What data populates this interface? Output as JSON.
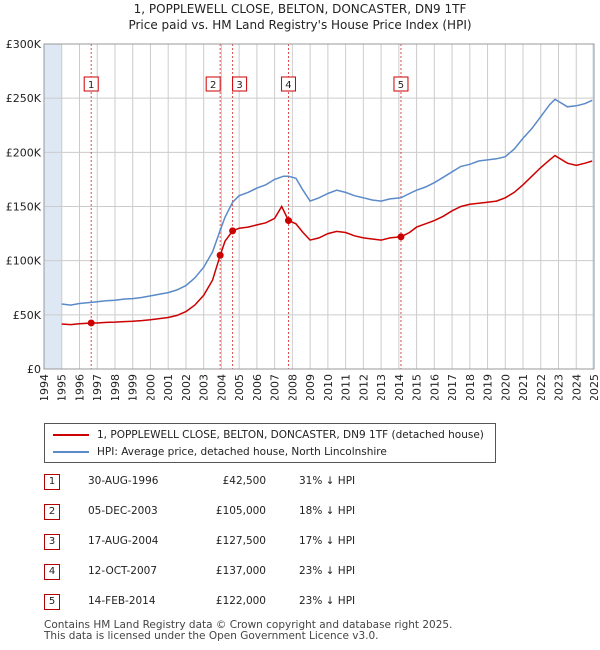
{
  "header": {
    "title_line1": "1, POPPLEWELL CLOSE, BELTON, DONCASTER, DN9 1TF",
    "title_line2": "Price paid vs. HM Land Registry's House Price Index (HPI)"
  },
  "legend": {
    "red_label": "1, POPPLEWELL CLOSE, BELTON, DONCASTER, DN9 1TF (detached house)",
    "blue_label": "HPI: Average price, detached house, North Lincolnshire"
  },
  "colors": {
    "red": "#cc0000",
    "blue": "#5b8ac9",
    "shade": "#dde8f4",
    "grid": "#cccccc"
  },
  "sales": [
    {
      "num": "1",
      "date": "30-AUG-1996",
      "price": "£42,500",
      "hpi": "31% ↓ HPI"
    },
    {
      "num": "2",
      "date": "05-DEC-2003",
      "price": "£105,000",
      "hpi": "18% ↓ HPI"
    },
    {
      "num": "3",
      "date": "17-AUG-2004",
      "price": "£127,500",
      "hpi": "17% ↓ HPI"
    },
    {
      "num": "4",
      "date": "12-OCT-2007",
      "price": "£137,000",
      "hpi": "23% ↓ HPI"
    },
    {
      "num": "5",
      "date": "14-FEB-2014",
      "price": "£122,000",
      "hpi": "23% ↓ HPI"
    }
  ],
  "footer": {
    "line1": "Contains HM Land Registry data © Crown copyright and database right 2025.",
    "line2": "This data is licensed under the Open Government Licence v3.0."
  },
  "chart_data": {
    "type": "line",
    "title": "Price paid vs. HM Land Registry's House Price Index (HPI)",
    "xlim": [
      1994,
      2025
    ],
    "ylim": [
      0,
      300000
    ],
    "x_ticks": [
      "1994",
      "1995",
      "1996",
      "1997",
      "1998",
      "1999",
      "2000",
      "2001",
      "2002",
      "2003",
      "2004",
      "2005",
      "2006",
      "2007",
      "2008",
      "2009",
      "2010",
      "2011",
      "2012",
      "2013",
      "2014",
      "2015",
      "2016",
      "2017",
      "2018",
      "2019",
      "2020",
      "2021",
      "2022",
      "2023",
      "2024",
      "2025"
    ],
    "y_ticks": [
      {
        "value": 0,
        "label": "£0"
      },
      {
        "value": 50000,
        "label": "£50K"
      },
      {
        "value": 100000,
        "label": "£100K"
      },
      {
        "value": 150000,
        "label": "£150K"
      },
      {
        "value": 200000,
        "label": "£200K"
      },
      {
        "value": 250000,
        "label": "£250K"
      },
      {
        "value": 300000,
        "label": "£300K"
      }
    ],
    "shaded_ranges": [
      [
        1994,
        1995
      ],
      [
        2024.9,
        2025
      ]
    ],
    "sale_markers": [
      {
        "label": "1",
        "x": 1996.66,
        "y": 42500
      },
      {
        "label": "2",
        "x": 2003.93,
        "y": 105000
      },
      {
        "label": "3",
        "x": 2004.63,
        "y": 127500
      },
      {
        "label": "4",
        "x": 2007.78,
        "y": 137000
      },
      {
        "label": "5",
        "x": 2014.12,
        "y": 122000
      }
    ],
    "series": [
      {
        "name": "HPI: Average price, detached house, North Lincolnshire",
        "color": "#5b8ac9",
        "points": [
          [
            1995.0,
            60000
          ],
          [
            1995.5,
            59000
          ],
          [
            1996.0,
            60500
          ],
          [
            1996.66,
            61500
          ],
          [
            1997.0,
            62000
          ],
          [
            1997.5,
            63000
          ],
          [
            1998.0,
            63500
          ],
          [
            1998.5,
            64500
          ],
          [
            1999.0,
            65000
          ],
          [
            1999.5,
            66000
          ],
          [
            2000.0,
            67500
          ],
          [
            2000.5,
            69000
          ],
          [
            2001.0,
            70500
          ],
          [
            2001.5,
            73000
          ],
          [
            2002.0,
            77000
          ],
          [
            2002.5,
            84000
          ],
          [
            2003.0,
            94000
          ],
          [
            2003.5,
            108000
          ],
          [
            2003.93,
            128000
          ],
          [
            2004.2,
            140000
          ],
          [
            2004.63,
            154000
          ],
          [
            2005.0,
            160000
          ],
          [
            2005.5,
            163000
          ],
          [
            2006.0,
            167000
          ],
          [
            2006.5,
            170000
          ],
          [
            2007.0,
            175000
          ],
          [
            2007.5,
            178000
          ],
          [
            2007.78,
            178000
          ],
          [
            2008.2,
            176000
          ],
          [
            2008.6,
            165000
          ],
          [
            2009.0,
            155000
          ],
          [
            2009.5,
            158000
          ],
          [
            2010.0,
            162000
          ],
          [
            2010.5,
            165000
          ],
          [
            2011.0,
            163000
          ],
          [
            2011.5,
            160000
          ],
          [
            2012.0,
            158000
          ],
          [
            2012.5,
            156000
          ],
          [
            2013.0,
            155000
          ],
          [
            2013.5,
            157000
          ],
          [
            2014.12,
            158000
          ],
          [
            2014.6,
            162000
          ],
          [
            2015.0,
            165000
          ],
          [
            2015.5,
            168000
          ],
          [
            2016.0,
            172000
          ],
          [
            2016.5,
            177000
          ],
          [
            2017.0,
            182000
          ],
          [
            2017.5,
            187000
          ],
          [
            2018.0,
            189000
          ],
          [
            2018.5,
            192000
          ],
          [
            2019.0,
            193000
          ],
          [
            2019.5,
            194000
          ],
          [
            2020.0,
            196000
          ],
          [
            2020.5,
            203000
          ],
          [
            2021.0,
            213000
          ],
          [
            2021.5,
            222000
          ],
          [
            2022.0,
            233000
          ],
          [
            2022.5,
            244000
          ],
          [
            2022.8,
            249000
          ],
          [
            2023.0,
            247000
          ],
          [
            2023.5,
            242000
          ],
          [
            2024.0,
            243000
          ],
          [
            2024.5,
            245000
          ],
          [
            2024.9,
            248000
          ]
        ]
      },
      {
        "name": "1, POPPLEWELL CLOSE, BELTON, DONCASTER, DN9 1TF (detached house)",
        "color": "#cc0000",
        "points": [
          [
            1995.0,
            41500
          ],
          [
            1995.5,
            41000
          ],
          [
            1996.0,
            41800
          ],
          [
            1996.66,
            42500
          ],
          [
            1997.0,
            42500
          ],
          [
            1997.5,
            43000
          ],
          [
            1998.0,
            43300
          ],
          [
            1998.5,
            43800
          ],
          [
            1999.0,
            44000
          ],
          [
            1999.5,
            44700
          ],
          [
            2000.0,
            45500
          ],
          [
            2000.5,
            46500
          ],
          [
            2001.0,
            47500
          ],
          [
            2001.5,
            49500
          ],
          [
            2002.0,
            53000
          ],
          [
            2002.5,
            59000
          ],
          [
            2003.0,
            68000
          ],
          [
            2003.5,
            82000
          ],
          [
            2003.93,
            105000
          ],
          [
            2004.2,
            118000
          ],
          [
            2004.63,
            127500
          ],
          [
            2005.0,
            130000
          ],
          [
            2005.5,
            131000
          ],
          [
            2006.0,
            133000
          ],
          [
            2006.5,
            135000
          ],
          [
            2007.0,
            139000
          ],
          [
            2007.4,
            150000
          ],
          [
            2007.78,
            137000
          ],
          [
            2008.2,
            134000
          ],
          [
            2008.6,
            126000
          ],
          [
            2009.0,
            119000
          ],
          [
            2009.5,
            121000
          ],
          [
            2010.0,
            125000
          ],
          [
            2010.5,
            127000
          ],
          [
            2011.0,
            126000
          ],
          [
            2011.5,
            123000
          ],
          [
            2012.0,
            121000
          ],
          [
            2012.5,
            120000
          ],
          [
            2013.0,
            119000
          ],
          [
            2013.5,
            121000
          ],
          [
            2014.12,
            122000
          ],
          [
            2014.6,
            126000
          ],
          [
            2015.0,
            131000
          ],
          [
            2015.5,
            134000
          ],
          [
            2016.0,
            137000
          ],
          [
            2016.5,
            141000
          ],
          [
            2017.0,
            146000
          ],
          [
            2017.5,
            150000
          ],
          [
            2018.0,
            152000
          ],
          [
            2018.5,
            153000
          ],
          [
            2019.0,
            154000
          ],
          [
            2019.5,
            155000
          ],
          [
            2020.0,
            158000
          ],
          [
            2020.5,
            163000
          ],
          [
            2021.0,
            170000
          ],
          [
            2021.5,
            178000
          ],
          [
            2022.0,
            186000
          ],
          [
            2022.5,
            193000
          ],
          [
            2022.8,
            197000
          ],
          [
            2023.0,
            195000
          ],
          [
            2023.5,
            190000
          ],
          [
            2024.0,
            188000
          ],
          [
            2024.5,
            190000
          ],
          [
            2024.9,
            192000
          ]
        ]
      }
    ]
  }
}
